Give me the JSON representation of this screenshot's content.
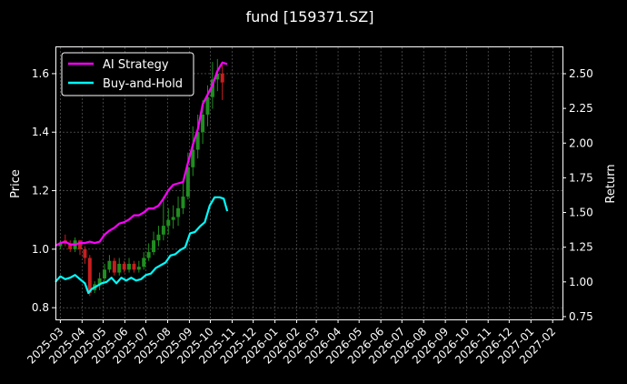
{
  "chart_data": {
    "type": "line",
    "title": "fund [159371.SZ]",
    "xlabel": "",
    "ylabel_left": "Price",
    "ylabel_right": "Return",
    "x_range": [
      "2025-02-22",
      "2027-02-15"
    ],
    "ylim_left": [
      0.76,
      1.69
    ],
    "ylim_right": [
      0.73,
      2.69
    ],
    "x_ticks": [
      "2025-03",
      "2025-04",
      "2025-05",
      "2025-06",
      "2025-07",
      "2025-08",
      "2025-09",
      "2025-10",
      "2025-11",
      "2025-12",
      "2026-01",
      "2026-02",
      "2026-03",
      "2026-04",
      "2026-05",
      "2026-06",
      "2026-07",
      "2026-08",
      "2026-09",
      "2026-10",
      "2026-11",
      "2026-12",
      "2027-01",
      "2027-02"
    ],
    "y_ticks_left": [
      "0.8",
      "1.0",
      "1.2",
      "1.4",
      "1.6"
    ],
    "y_ticks_right": [
      "0.75",
      "1.00",
      "1.25",
      "1.50",
      "1.75",
      "2.00",
      "2.25",
      "2.50"
    ],
    "grid": true,
    "legend_position": "top-left",
    "series": [
      {
        "name": "AI Strategy",
        "axis": "right",
        "color": "#ff00ff",
        "points": [
          [
            "2025-02-22",
            1.26
          ],
          [
            "2025-03-01",
            1.28
          ],
          [
            "2025-03-08",
            1.29
          ],
          [
            "2025-03-15",
            1.27
          ],
          [
            "2025-03-22",
            1.27
          ],
          [
            "2025-03-29",
            1.28
          ],
          [
            "2025-04-05",
            1.28
          ],
          [
            "2025-04-12",
            1.29
          ],
          [
            "2025-04-19",
            1.28
          ],
          [
            "2025-04-26",
            1.29
          ],
          [
            "2025-05-03",
            1.34
          ],
          [
            "2025-05-10",
            1.37
          ],
          [
            "2025-05-17",
            1.39
          ],
          [
            "2025-05-24",
            1.42
          ],
          [
            "2025-05-31",
            1.43
          ],
          [
            "2025-06-07",
            1.45
          ],
          [
            "2025-06-14",
            1.48
          ],
          [
            "2025-06-21",
            1.48
          ],
          [
            "2025-06-28",
            1.5
          ],
          [
            "2025-07-05",
            1.53
          ],
          [
            "2025-07-12",
            1.53
          ],
          [
            "2025-07-19",
            1.55
          ],
          [
            "2025-07-26",
            1.6
          ],
          [
            "2025-08-02",
            1.66
          ],
          [
            "2025-08-09",
            1.7
          ],
          [
            "2025-08-16",
            1.71
          ],
          [
            "2025-08-23",
            1.72
          ],
          [
            "2025-08-30",
            1.86
          ],
          [
            "2025-09-06",
            1.99
          ],
          [
            "2025-09-13",
            2.1
          ],
          [
            "2025-09-20",
            2.28
          ],
          [
            "2025-09-27",
            2.35
          ],
          [
            "2025-10-04",
            2.42
          ],
          [
            "2025-10-11",
            2.52
          ],
          [
            "2025-10-18",
            2.58
          ],
          [
            "2025-10-25",
            2.57
          ]
        ]
      },
      {
        "name": "Buy-and-Hold",
        "axis": "right",
        "color": "#00ffff",
        "points": [
          [
            "2025-02-22",
            1.0
          ],
          [
            "2025-03-01",
            1.04
          ],
          [
            "2025-03-08",
            1.02
          ],
          [
            "2025-03-15",
            1.03
          ],
          [
            "2025-03-22",
            1.05
          ],
          [
            "2025-03-29",
            1.02
          ],
          [
            "2025-04-05",
            0.99
          ],
          [
            "2025-04-10",
            0.92
          ],
          [
            "2025-04-15",
            0.95
          ],
          [
            "2025-04-22",
            0.97
          ],
          [
            "2025-04-29",
            0.99
          ],
          [
            "2025-05-06",
            1.0
          ],
          [
            "2025-05-13",
            1.03
          ],
          [
            "2025-05-20",
            0.99
          ],
          [
            "2025-05-27",
            1.03
          ],
          [
            "2025-06-03",
            1.01
          ],
          [
            "2025-06-10",
            1.03
          ],
          [
            "2025-06-17",
            1.01
          ],
          [
            "2025-06-24",
            1.02
          ],
          [
            "2025-07-01",
            1.05
          ],
          [
            "2025-07-08",
            1.06
          ],
          [
            "2025-07-15",
            1.1
          ],
          [
            "2025-07-22",
            1.12
          ],
          [
            "2025-07-29",
            1.14
          ],
          [
            "2025-08-05",
            1.19
          ],
          [
            "2025-08-12",
            1.2
          ],
          [
            "2025-08-19",
            1.23
          ],
          [
            "2025-08-26",
            1.25
          ],
          [
            "2025-09-02",
            1.35
          ],
          [
            "2025-09-09",
            1.36
          ],
          [
            "2025-09-16",
            1.4
          ],
          [
            "2025-09-23",
            1.43
          ],
          [
            "2025-09-30",
            1.55
          ],
          [
            "2025-10-07",
            1.61
          ],
          [
            "2025-10-14",
            1.61
          ],
          [
            "2025-10-20",
            1.6
          ],
          [
            "2025-10-25",
            1.51
          ]
        ]
      }
    ],
    "candlestick_overlay": {
      "axis": "left",
      "up_color": "#1f8f1f",
      "down_color": "#c81e1e",
      "bars": [
        [
          "2025-03-01",
          1.01,
          1.02,
          1.0,
          1.03
        ],
        [
          "2025-03-08",
          1.03,
          1.02,
          1.01,
          1.05
        ],
        [
          "2025-03-15",
          1.02,
          1.0,
          0.99,
          1.03
        ],
        [
          "2025-03-22",
          1.0,
          1.03,
          0.99,
          1.04
        ],
        [
          "2025-03-29",
          1.03,
          1.0,
          0.98,
          1.03
        ],
        [
          "2025-04-05",
          1.0,
          0.97,
          0.95,
          1.01
        ],
        [
          "2025-04-12",
          0.97,
          0.85,
          0.84,
          0.98
        ],
        [
          "2025-04-19",
          0.86,
          0.88,
          0.85,
          0.89
        ],
        [
          "2025-04-26",
          0.88,
          0.9,
          0.86,
          0.92
        ],
        [
          "2025-05-03",
          0.9,
          0.93,
          0.89,
          0.95
        ],
        [
          "2025-05-10",
          0.93,
          0.96,
          0.92,
          0.98
        ],
        [
          "2025-05-17",
          0.96,
          0.92,
          0.91,
          0.97
        ],
        [
          "2025-05-24",
          0.92,
          0.95,
          0.91,
          0.97
        ],
        [
          "2025-05-31",
          0.95,
          0.93,
          0.92,
          0.96
        ],
        [
          "2025-06-07",
          0.93,
          0.95,
          0.92,
          0.97
        ],
        [
          "2025-06-14",
          0.95,
          0.93,
          0.92,
          0.96
        ],
        [
          "2025-06-21",
          0.93,
          0.94,
          0.92,
          0.96
        ],
        [
          "2025-06-28",
          0.94,
          0.97,
          0.93,
          0.99
        ],
        [
          "2025-07-05",
          0.97,
          0.99,
          0.96,
          1.02
        ],
        [
          "2025-07-12",
          0.99,
          1.03,
          0.98,
          1.06
        ],
        [
          "2025-07-19",
          1.03,
          1.05,
          1.01,
          1.08
        ],
        [
          "2025-07-26",
          1.05,
          1.08,
          1.03,
          1.18
        ],
        [
          "2025-08-02",
          1.08,
          1.1,
          1.05,
          1.14
        ],
        [
          "2025-08-09",
          1.1,
          1.11,
          1.07,
          1.15
        ],
        [
          "2025-08-16",
          1.11,
          1.14,
          1.08,
          1.18
        ],
        [
          "2025-08-23",
          1.14,
          1.18,
          1.12,
          1.23
        ],
        [
          "2025-08-30",
          1.18,
          1.28,
          1.17,
          1.33
        ],
        [
          "2025-09-06",
          1.28,
          1.34,
          1.25,
          1.42
        ],
        [
          "2025-09-13",
          1.34,
          1.4,
          1.31,
          1.46
        ],
        [
          "2025-09-20",
          1.4,
          1.46,
          1.36,
          1.51
        ],
        [
          "2025-09-27",
          1.46,
          1.52,
          1.42,
          1.56
        ],
        [
          "2025-10-04",
          1.52,
          1.58,
          1.48,
          1.64
        ],
        [
          "2025-10-11",
          1.58,
          1.6,
          1.54,
          1.65
        ],
        [
          "2025-10-18",
          1.6,
          1.57,
          1.51,
          1.63
        ]
      ]
    }
  }
}
